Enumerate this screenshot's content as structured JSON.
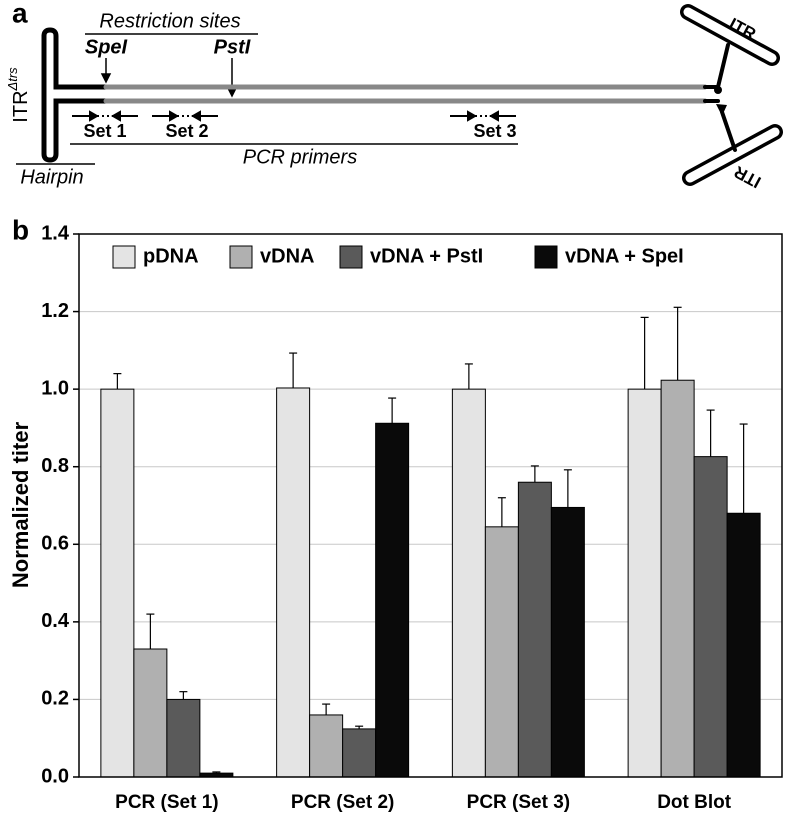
{
  "panel_labels": [
    "a",
    "b"
  ],
  "diagram": {
    "restriction_title": "Restriction sites",
    "sites": [
      "SpeI",
      "PstI"
    ],
    "itr_left": {
      "text": "ITR",
      "superscript": "Δtrs"
    },
    "primer_sets": [
      "Set 1",
      "Set 2",
      "Set 3"
    ],
    "primers_title": "PCR primers",
    "hairpin": "Hairpin",
    "itr_right": [
      "ITR",
      "ITR"
    ]
  },
  "chart_data": {
    "type": "bar",
    "y_label": "Normalized titer",
    "categories": [
      "PCR (Set 1)",
      "PCR (Set 2)",
      "PCR (Set 3)",
      "Dot Blot"
    ],
    "series": [
      {
        "name": "pDNA",
        "color": "#e4e4e4",
        "values": [
          1.0,
          1.003,
          1.0,
          1.0
        ],
        "errors": [
          0.04,
          0.09,
          0.065,
          0.185
        ]
      },
      {
        "name": "vDNA",
        "color": "#b0b0b0",
        "values": [
          0.33,
          0.16,
          0.645,
          1.023
        ],
        "errors": [
          0.09,
          0.028,
          0.075,
          0.188
        ]
      },
      {
        "name": "vDNA + PstI",
        "color": "#5a5a5a",
        "values": [
          0.2,
          0.124,
          0.76,
          0.826
        ],
        "errors": [
          0.02,
          0.007,
          0.042,
          0.12
        ]
      },
      {
        "name": "vDNA + SpeI",
        "color": "#0a0a0a",
        "values": [
          0.01,
          0.912,
          0.695,
          0.68
        ],
        "errors": [
          0.003,
          0.065,
          0.097,
          0.23
        ]
      }
    ],
    "ylim": [
      0,
      1.4
    ],
    "yticks": [
      {
        "value": 0,
        "label": "0.0"
      },
      {
        "value": 0.2,
        "label": "0.2"
      },
      {
        "value": 0.4,
        "label": "0.4"
      },
      {
        "value": 0.6,
        "label": "0.6"
      },
      {
        "value": 0.8,
        "label": "0.8"
      },
      {
        "value": 1.0,
        "label": "1.0"
      },
      {
        "value": 1.2,
        "label": "1.2"
      },
      {
        "value": 1.4,
        "label": "1.4"
      }
    ],
    "grid": true,
    "legend": "top"
  }
}
